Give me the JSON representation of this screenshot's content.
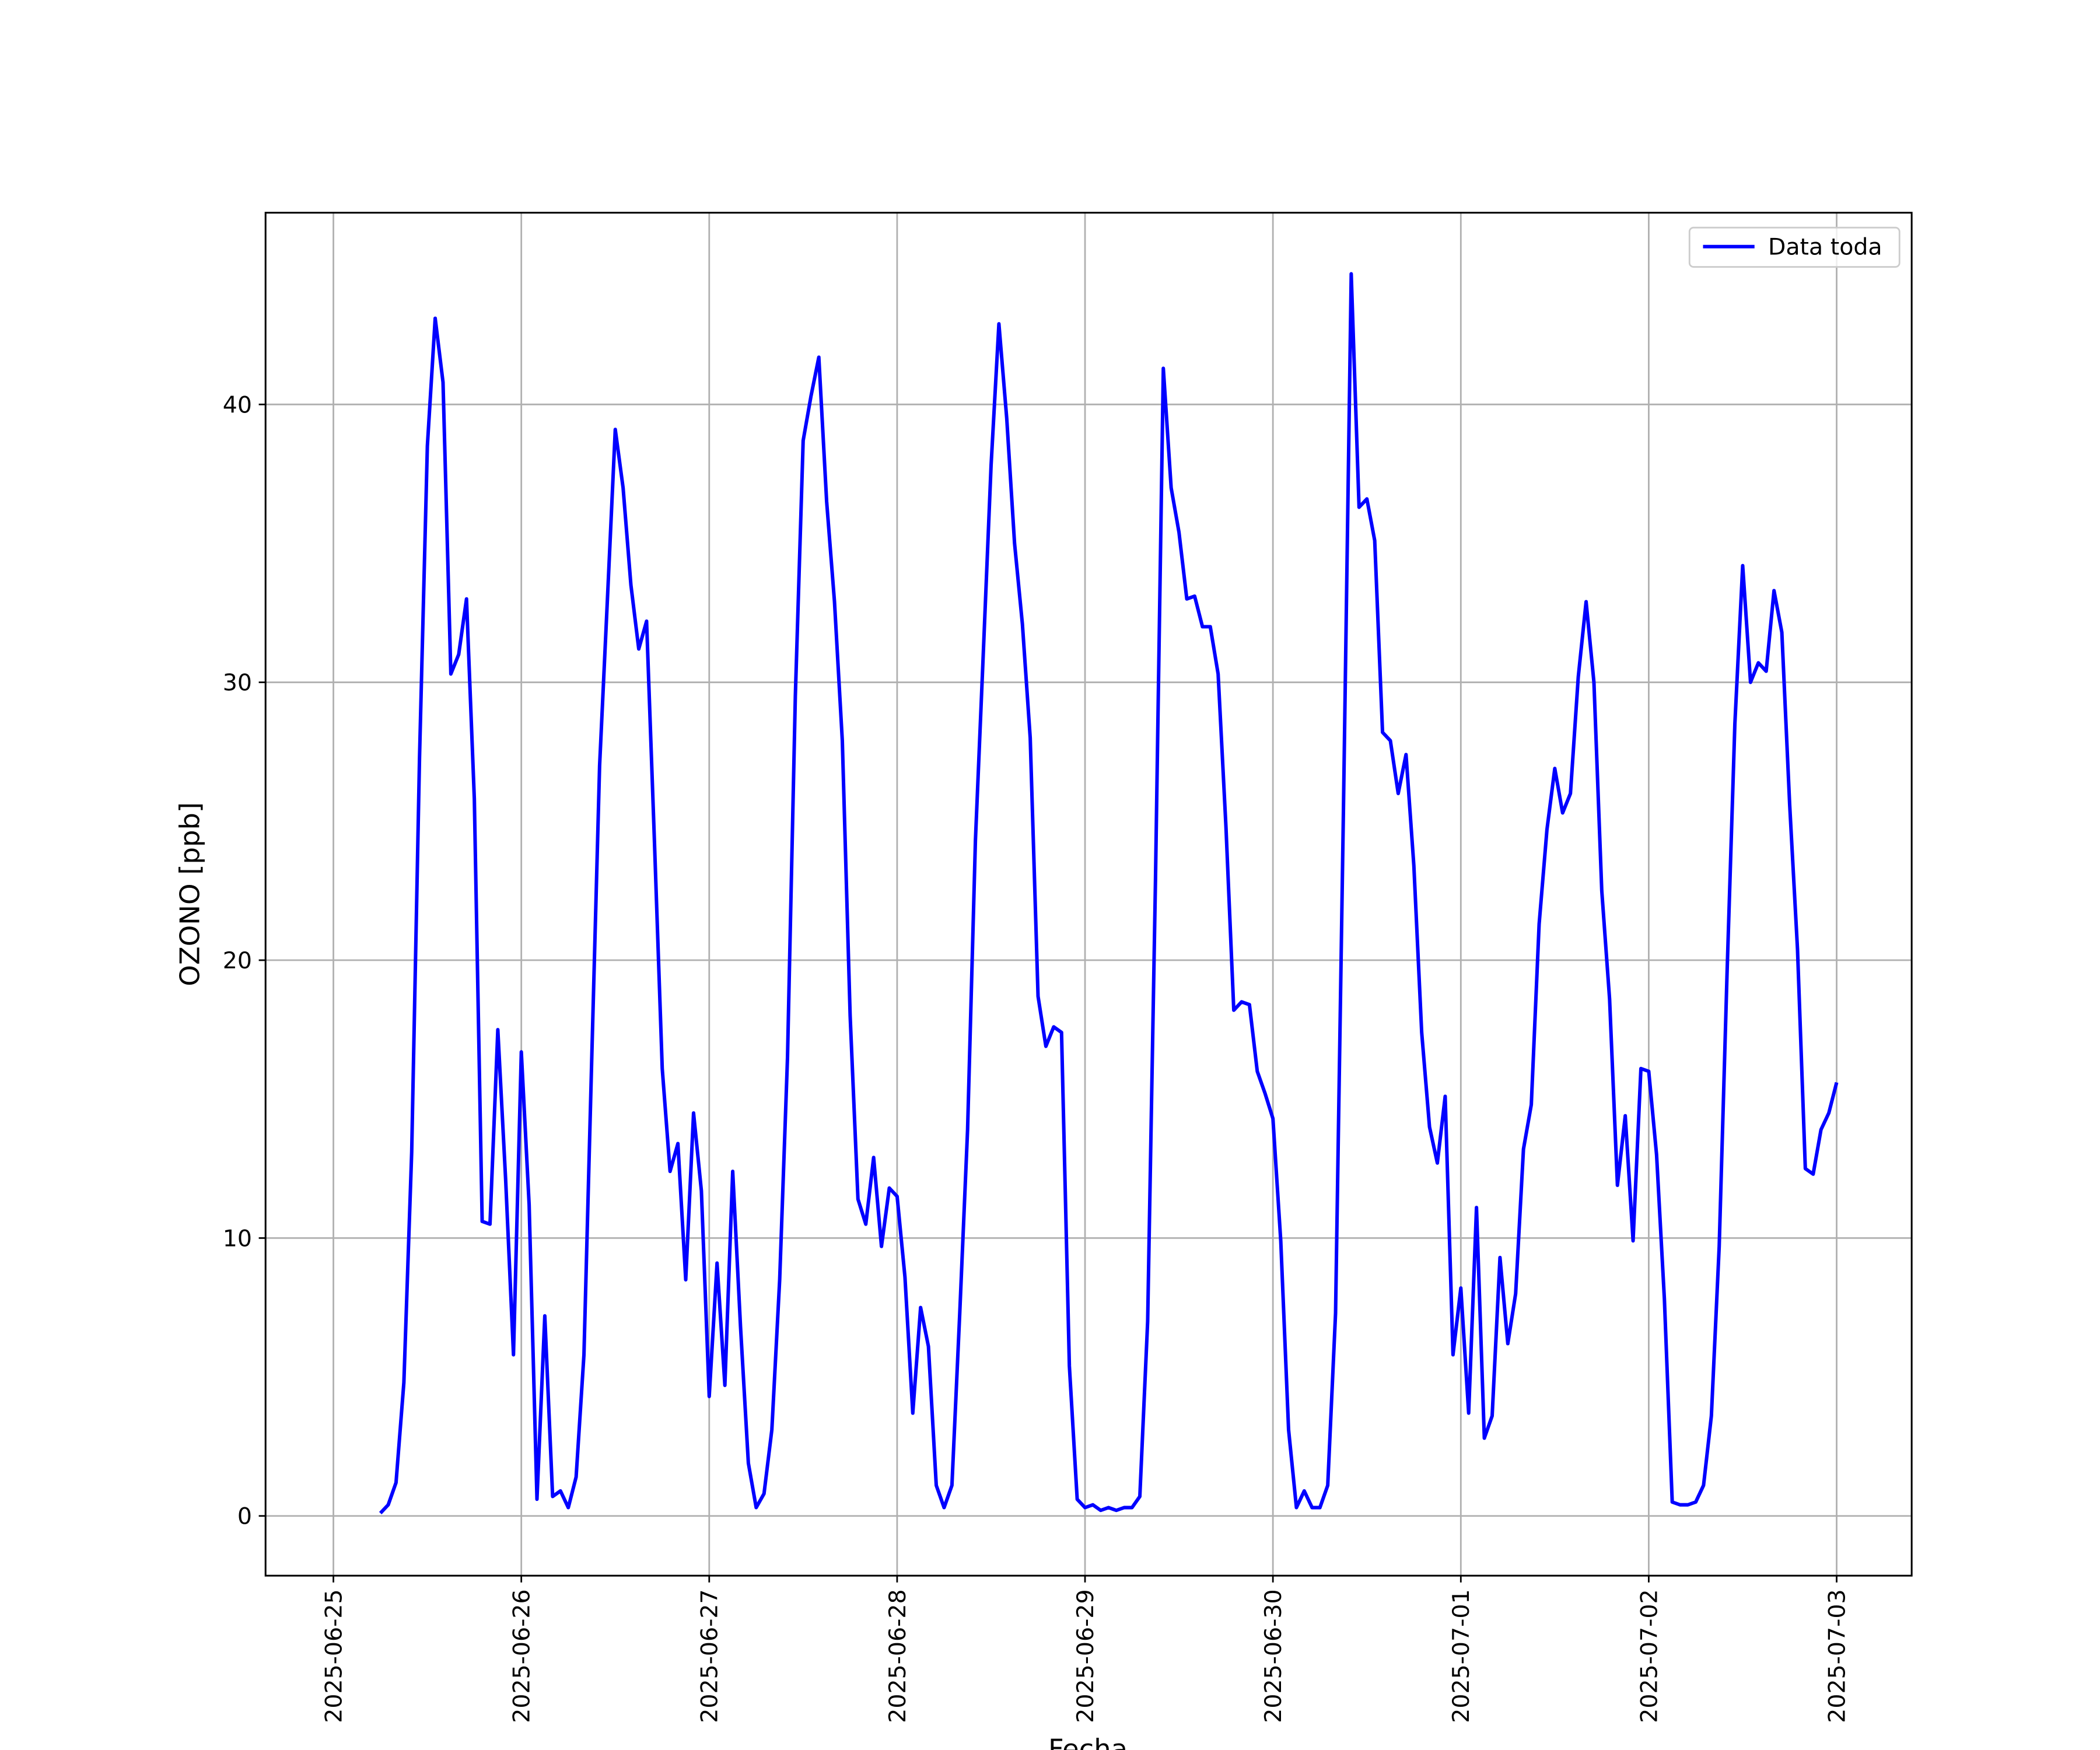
{
  "chart_data": {
    "type": "line",
    "xlabel": "Fecha",
    "ylabel": "OZONO [ppb]",
    "xlim": [
      "2025-06-24 15:20",
      "2025-07-03 09:35"
    ],
    "xticks": [
      "2025-06-25",
      "2025-06-26",
      "2025-06-27",
      "2025-06-28",
      "2025-06-29",
      "2025-06-30",
      "2025-07-01",
      "2025-07-02",
      "2025-07-03"
    ],
    "ylim": [
      -2.15,
      46.9
    ],
    "yticks": [
      0,
      10,
      20,
      30,
      40
    ],
    "grid": true,
    "legend": "upper right",
    "x": [
      "2025-06-25 06:00",
      "2025-06-25 07:00",
      "2025-06-25 08:00",
      "2025-06-25 09:00",
      "2025-06-25 10:00",
      "2025-06-25 11:00",
      "2025-06-25 12:00",
      "2025-06-25 13:00",
      "2025-06-25 14:00",
      "2025-06-25 15:00",
      "2025-06-25 16:00",
      "2025-06-25 17:00",
      "2025-06-25 18:00",
      "2025-06-25 19:00",
      "2025-06-25 20:00",
      "2025-06-25 21:00",
      "2025-06-25 22:00",
      "2025-06-25 23:00",
      "2025-06-26 00:00",
      "2025-06-26 01:00",
      "2025-06-26 02:00",
      "2025-06-26 03:00",
      "2025-06-26 04:00",
      "2025-06-26 05:00",
      "2025-06-26 06:00",
      "2025-06-26 07:00",
      "2025-06-26 08:00",
      "2025-06-26 09:00",
      "2025-06-26 10:00",
      "2025-06-26 11:00",
      "2025-06-26 12:00",
      "2025-06-26 13:00",
      "2025-06-26 14:00",
      "2025-06-26 15:00",
      "2025-06-26 16:00",
      "2025-06-26 17:00",
      "2025-06-26 18:00",
      "2025-06-26 19:00",
      "2025-06-26 20:00",
      "2025-06-26 21:00",
      "2025-06-26 22:00",
      "2025-06-26 23:00",
      "2025-06-27 00:00",
      "2025-06-27 01:00",
      "2025-06-27 02:00",
      "2025-06-27 03:00",
      "2025-06-27 04:00",
      "2025-06-27 05:00",
      "2025-06-27 06:00",
      "2025-06-27 07:00",
      "2025-06-27 08:00",
      "2025-06-27 09:00",
      "2025-06-27 10:00",
      "2025-06-27 11:00",
      "2025-06-27 12:00",
      "2025-06-27 13:00",
      "2025-06-27 14:00",
      "2025-06-27 15:00",
      "2025-06-27 16:00",
      "2025-06-27 17:00",
      "2025-06-27 18:00",
      "2025-06-27 19:00",
      "2025-06-27 20:00",
      "2025-06-27 21:00",
      "2025-06-27 22:00",
      "2025-06-27 23:00",
      "2025-06-28 00:00",
      "2025-06-28 01:00",
      "2025-06-28 02:00",
      "2025-06-28 03:00",
      "2025-06-28 04:00",
      "2025-06-28 05:00",
      "2025-06-28 06:00",
      "2025-06-28 07:00",
      "2025-06-28 08:00",
      "2025-06-28 09:00",
      "2025-06-28 10:00",
      "2025-06-28 11:00",
      "2025-06-28 12:00",
      "2025-06-28 13:00",
      "2025-06-28 14:00",
      "2025-06-28 15:00",
      "2025-06-28 16:00",
      "2025-06-28 17:00",
      "2025-06-28 18:00",
      "2025-06-28 19:00",
      "2025-06-28 20:00",
      "2025-06-28 21:00",
      "2025-06-28 22:00",
      "2025-06-28 23:00",
      "2025-06-29 00:00",
      "2025-06-29 01:00",
      "2025-06-29 02:00",
      "2025-06-29 03:00",
      "2025-06-29 04:00",
      "2025-06-29 05:00",
      "2025-06-29 06:00",
      "2025-06-29 07:00",
      "2025-06-29 08:00",
      "2025-06-29 09:00",
      "2025-06-29 10:00",
      "2025-06-29 11:00",
      "2025-06-29 12:00",
      "2025-06-29 13:00",
      "2025-06-29 14:00",
      "2025-06-29 15:00",
      "2025-06-29 16:00",
      "2025-06-29 17:00",
      "2025-06-29 18:00",
      "2025-06-29 19:00",
      "2025-06-29 20:00",
      "2025-06-29 21:00",
      "2025-06-29 22:00",
      "2025-06-29 23:00",
      "2025-06-30 00:00",
      "2025-06-30 01:00",
      "2025-06-30 02:00",
      "2025-06-30 03:00",
      "2025-06-30 04:00",
      "2025-06-30 05:00",
      "2025-06-30 06:00",
      "2025-06-30 07:00",
      "2025-06-30 08:00",
      "2025-06-30 09:00",
      "2025-06-30 10:00",
      "2025-06-30 11:00",
      "2025-06-30 12:00",
      "2025-06-30 13:00",
      "2025-06-30 14:00",
      "2025-06-30 15:00",
      "2025-06-30 16:00",
      "2025-06-30 17:00",
      "2025-06-30 18:00",
      "2025-06-30 19:00",
      "2025-06-30 20:00",
      "2025-06-30 21:00",
      "2025-06-30 22:00",
      "2025-06-30 23:00",
      "2025-07-01 00:00",
      "2025-07-01 01:00",
      "2025-07-01 02:00",
      "2025-07-01 03:00",
      "2025-07-01 04:00",
      "2025-07-01 05:00",
      "2025-07-01 06:00",
      "2025-07-01 07:00",
      "2025-07-01 08:00",
      "2025-07-01 09:00",
      "2025-07-01 10:00",
      "2025-07-01 11:00",
      "2025-07-01 12:00",
      "2025-07-01 13:00",
      "2025-07-01 14:00",
      "2025-07-01 15:00",
      "2025-07-01 16:00",
      "2025-07-01 17:00",
      "2025-07-01 18:00",
      "2025-07-01 19:00",
      "2025-07-01 20:00",
      "2025-07-01 21:00",
      "2025-07-01 22:00",
      "2025-07-01 23:00",
      "2025-07-02 00:00",
      "2025-07-02 01:00",
      "2025-07-02 02:00",
      "2025-07-02 03:00",
      "2025-07-02 04:00",
      "2025-07-02 05:00",
      "2025-07-02 06:00",
      "2025-07-02 07:00",
      "2025-07-02 08:00",
      "2025-07-02 09:00",
      "2025-07-02 10:00",
      "2025-07-02 11:00",
      "2025-07-02 12:00",
      "2025-07-02 13:00",
      "2025-07-02 14:00",
      "2025-07-02 15:00",
      "2025-07-02 16:00",
      "2025-07-02 17:00",
      "2025-07-02 18:00",
      "2025-07-02 19:00",
      "2025-07-02 20:00",
      "2025-07-02 21:00",
      "2025-07-02 22:00",
      "2025-07-02 23:00",
      "2025-07-03 00:00"
    ],
    "series": [
      {
        "name": "Data toda",
        "color": "#0000ff",
        "values": [
          0.1,
          0.4,
          1.2,
          4.8,
          13.1,
          27.3,
          38.5,
          43.1,
          40.8,
          30.3,
          31.0,
          33.0,
          25.8,
          10.6,
          10.5,
          17.5,
          12.1,
          5.8,
          16.7,
          11.2,
          0.6,
          7.2,
          0.7,
          0.9,
          0.3,
          1.4,
          5.8,
          16.5,
          27.0,
          33.0,
          39.1,
          37.0,
          33.5,
          31.2,
          32.2,
          24.3,
          16.1,
          12.4,
          13.4,
          8.5,
          14.5,
          11.7,
          4.3,
          9.1,
          4.7,
          12.4,
          6.8,
          1.9,
          0.3,
          0.8,
          3.1,
          8.5,
          16.5,
          29.5,
          38.7,
          40.3,
          41.7,
          36.5,
          32.9,
          27.9,
          18.0,
          11.4,
          10.5,
          12.9,
          9.7,
          11.8,
          11.5,
          8.6,
          3.7,
          7.5,
          6.1,
          1.1,
          0.3,
          1.1,
          7.3,
          13.9,
          24.3,
          31.0,
          37.8,
          42.9,
          39.5,
          35.0,
          32.1,
          28.0,
          18.7,
          16.9,
          17.6,
          17.4,
          5.4,
          0.6,
          0.3,
          0.4,
          0.2,
          0.3,
          0.2,
          0.3,
          0.3,
          0.7,
          7.0,
          22.9,
          41.3,
          37.0,
          35.4,
          33.0,
          33.1,
          32.0,
          32.0,
          30.3,
          24.8,
          18.2,
          18.5,
          18.4,
          16.0,
          15.2,
          14.3,
          9.9,
          3.1,
          0.3,
          0.9,
          0.3,
          0.3,
          1.1,
          7.3,
          25.3,
          44.7,
          36.3,
          36.6,
          35.1,
          28.2,
          27.9,
          26.0,
          27.4,
          23.4,
          17.4,
          14.0,
          12.7,
          15.1,
          5.8,
          8.2,
          3.7,
          11.1,
          2.8,
          3.6,
          9.3,
          6.2,
          8.0,
          13.2,
          14.8,
          21.3,
          24.7,
          26.9,
          25.3,
          26.0,
          30.2,
          32.9,
          30.0,
          22.5,
          18.6,
          11.9,
          14.4,
          9.9,
          16.1,
          16.0,
          13.0,
          7.8,
          0.5,
          0.4,
          0.4,
          0.5,
          1.1,
          3.6,
          9.7,
          19.5,
          28.5,
          34.2,
          30.0,
          30.7,
          30.4,
          33.3,
          31.8,
          25.6,
          20.4,
          12.5,
          12.3,
          13.9,
          14.5,
          15.6
        ]
      }
    ]
  }
}
